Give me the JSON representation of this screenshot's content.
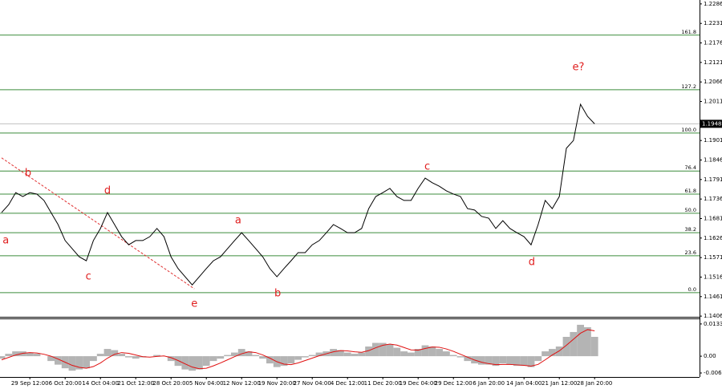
{
  "chart_data": [
    {
      "type": "line",
      "categories": [
        null,
        null,
        null,
        null,
        "29 Sep 12:00",
        null,
        null,
        null,
        null,
        "6 Oct 20:00",
        null,
        null,
        null,
        null,
        "14 Oct 04:00",
        null,
        null,
        null,
        null,
        "21 Oct 12:00",
        null,
        null,
        null,
        null,
        "28 Oct 20:00",
        null,
        null,
        null,
        null,
        "5 Nov 04:00",
        null,
        null,
        null,
        null,
        "12 Nov 12:00",
        null,
        null,
        null,
        null,
        "19 Nov 20:00",
        null,
        null,
        null,
        null,
        "27 Nov 04:00",
        null,
        null,
        null,
        null,
        "4 Dec 12:00",
        null,
        null,
        null,
        null,
        "11 Dec 20:00",
        null,
        null,
        null,
        null,
        "19 Dec 04:00",
        null,
        null,
        null,
        null,
        "29 Dec 12:00",
        null,
        null,
        null,
        null,
        "6 Jan 20:00",
        null,
        null,
        null,
        null,
        "14 Jan 04:00",
        null,
        null,
        null,
        null,
        "21 Jan 12:00",
        null,
        null,
        null,
        null,
        "28 Jan 20:00"
      ],
      "values": [
        1.1698,
        1.172,
        1.1754,
        1.1743,
        1.1754,
        1.175,
        1.1732,
        1.1698,
        1.1664,
        1.1619,
        1.1596,
        1.1573,
        1.1562,
        1.1619,
        1.1653,
        1.1698,
        1.1664,
        1.163,
        1.1607,
        1.1619,
        1.1619,
        1.163,
        1.1653,
        1.163,
        1.1573,
        1.154,
        1.1517,
        1.1494,
        1.1517,
        1.154,
        1.1562,
        1.1573,
        1.1596,
        1.1619,
        1.1641,
        1.1619,
        1.1596,
        1.1573,
        1.154,
        1.1517,
        1.154,
        1.1562,
        1.1585,
        1.1585,
        1.1607,
        1.1619,
        1.1641,
        1.1664,
        1.1653,
        1.1641,
        1.1641,
        1.1653,
        1.1709,
        1.1743,
        1.1754,
        1.1766,
        1.1743,
        1.1732,
        1.1732,
        1.1766,
        1.1795,
        1.1782,
        1.1772,
        1.1759,
        1.175,
        1.1743,
        1.1709,
        1.1705,
        1.1687,
        1.1682,
        1.1653,
        1.1675,
        1.1653,
        1.1641,
        1.163,
        1.1607,
        1.1664,
        1.1732,
        1.1709,
        1.1743,
        1.1879,
        1.1901,
        1.2003,
        1.1969,
        1.1948
      ],
      "color": "#000000",
      "ylim": [
        1.1404,
        1.2297
      ],
      "yticks": [
        1.2286,
        1.2231,
        1.2176,
        1.2121,
        1.2066,
        1.2011,
        1.1901,
        1.1846,
        1.1791,
        1.1736,
        1.1681,
        1.1626,
        1.1571,
        1.1516,
        1.1461,
        1.1406
      ],
      "last_price": 1.1948,
      "fib_color": "#3c8c3c",
      "fib_levels": [
        {
          "value": 1.2198,
          "label": "161.8"
        },
        {
          "value": 1.2044,
          "label": "127.2"
        },
        {
          "value": 1.1922,
          "label": "100.0"
        },
        {
          "value": 1.1815,
          "label": "76.4"
        },
        {
          "value": 1.175,
          "label": "61.8"
        },
        {
          "value": 1.1696,
          "label": "50.0"
        },
        {
          "value": 1.1641,
          "label": "38.2"
        },
        {
          "value": 1.1576,
          "label": "23.6"
        },
        {
          "value": 1.1472,
          "label": "0.0"
        }
      ],
      "trendline": {
        "x": [
          0,
          27.3
        ],
        "y": [
          1.1852,
          1.1483
        ],
        "color": "#e03030"
      },
      "annotation_color": "#e02020",
      "annotations": [
        {
          "text": "a",
          "x": 0.6,
          "y": 1.1619
        },
        {
          "text": "b",
          "x": 3.75,
          "y": 1.1809
        },
        {
          "text": "c",
          "x": 12.3,
          "y": 1.1517
        },
        {
          "text": "d",
          "x": 15,
          "y": 1.1759
        },
        {
          "text": "e",
          "x": 27.3,
          "y": 1.144
        },
        {
          "text": "a",
          "x": 33.5,
          "y": 1.1675
        },
        {
          "text": "b",
          "x": 39.1,
          "y": 1.1469
        },
        {
          "text": "c",
          "x": 60.3,
          "y": 1.1827
        },
        {
          "text": "d",
          "x": 75.1,
          "y": 1.1558
        },
        {
          "text": "e?",
          "x": 81.7,
          "y": 1.2107
        }
      ]
    },
    {
      "type": "bar",
      "values": [
        -0.001,
        0.001,
        0.002,
        0.002,
        0.0015,
        0.001,
        0,
        -0.002,
        -0.0035,
        -0.005,
        -0.006,
        -0.0055,
        -0.005,
        -0.002,
        0.001,
        0.003,
        0.0025,
        0.001,
        -0.0005,
        -0.001,
        -0.0005,
        0,
        0.0005,
        0,
        -0.002,
        -0.004,
        -0.0055,
        -0.006,
        -0.0055,
        -0.004,
        -0.002,
        -0.001,
        0.0005,
        0.0015,
        0.003,
        0.002,
        0.0005,
        -0.001,
        -0.003,
        -0.0045,
        -0.004,
        -0.003,
        -0.0015,
        -0.0005,
        0.0005,
        0.0015,
        0.002,
        0.003,
        0.0025,
        0.0015,
        0.001,
        0.0015,
        0.004,
        0.0055,
        0.0055,
        0.005,
        0.0035,
        0.002,
        0.0015,
        0.003,
        0.0045,
        0.004,
        0.003,
        0.002,
        0.0005,
        -0.0005,
        -0.002,
        -0.003,
        -0.0035,
        -0.0035,
        -0.004,
        -0.003,
        -0.0035,
        -0.004,
        -0.004,
        -0.0045,
        -0.002,
        0.002,
        0.003,
        0.004,
        0.008,
        0.01,
        0.013,
        0.012,
        0.008
      ],
      "color": "#b4b4b4",
      "signal": [
        -0.0015,
        -0.0005,
        0.0005,
        0.0012,
        0.0015,
        0.0013,
        0.0008,
        0,
        -0.0012,
        -0.0025,
        -0.0038,
        -0.0046,
        -0.005,
        -0.0043,
        -0.0028,
        -0.0008,
        0.0008,
        0.0015,
        0.0012,
        0.0005,
        -0.0002,
        -0.0004,
        -0.0001,
        0.0001,
        -0.0006,
        -0.0018,
        -0.0032,
        -0.0045,
        -0.0052,
        -0.005,
        -0.004,
        -0.0028,
        -0.0015,
        -0.0002,
        0.001,
        0.0018,
        0.0015,
        0.0005,
        -0.0008,
        -0.0023,
        -0.0033,
        -0.0035,
        -0.0028,
        -0.0018,
        -0.0008,
        0.0002,
        0.001,
        0.0018,
        0.0023,
        0.0022,
        0.0018,
        0.0016,
        0.0023,
        0.0035,
        0.0045,
        0.005,
        0.0046,
        0.0036,
        0.0026,
        0.0025,
        0.0032,
        0.0038,
        0.0037,
        0.003,
        0.002,
        0.0008,
        -0.0004,
        -0.0016,
        -0.0025,
        -0.0031,
        -0.0035,
        -0.0034,
        -0.0034,
        -0.0036,
        -0.0038,
        -0.0041,
        -0.0034,
        -0.0015,
        0.0005,
        0.0022,
        0.0045,
        0.007,
        0.0095,
        0.011,
        0.0105
      ],
      "signal_color": "#e01010",
      "ylim": [
        -0.0086,
        0.0153
      ],
      "yticks": [
        0.01334,
        {
          "value": 0,
          "label": "0.00"
        },
        -0.00695
      ]
    }
  ]
}
